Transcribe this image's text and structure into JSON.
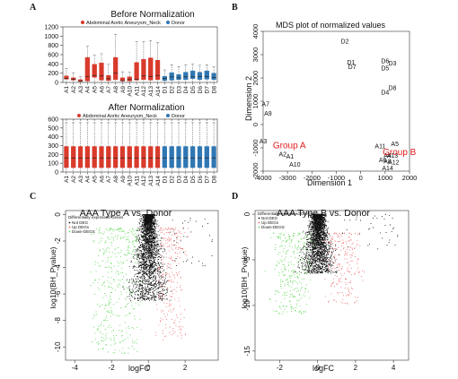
{
  "colors": {
    "red": "#d93a2b",
    "blue": "#2f77b3",
    "black": "#111111",
    "green": "#59d64e",
    "pink": "#f06a6a",
    "axis": "#333333",
    "groupLabel": "#e41a1c"
  },
  "chart_data": [
    {
      "panel": "A",
      "type": "box",
      "title": "Before Normalization",
      "legend": {
        "position": "top-center",
        "items": [
          {
            "name": "Abdominal Aortic Aneurysm_Neck",
            "color": "#d93a2b"
          },
          {
            "name": "Donor",
            "color": "#2f77b3"
          }
        ]
      },
      "ylim": [
        0,
        1200
      ],
      "yticks": [
        0,
        200,
        400,
        600,
        800,
        1000,
        1200
      ],
      "categories": [
        "A1",
        "A2",
        "A3",
        "A4",
        "A5",
        "A6",
        "A7",
        "A8",
        "A9",
        "A10",
        "A11",
        "A12",
        "A13",
        "A14",
        "D1",
        "D2",
        "D3",
        "D4",
        "D5",
        "D6",
        "D7",
        "D8"
      ],
      "groups": [
        "A",
        "A",
        "A",
        "A",
        "A",
        "A",
        "A",
        "A",
        "A",
        "A",
        "A",
        "A",
        "A",
        "A",
        "D",
        "D",
        "D",
        "D",
        "D",
        "D",
        "D",
        "D"
      ],
      "q1": [
        70,
        50,
        20,
        30,
        110,
        50,
        40,
        60,
        30,
        30,
        50,
        60,
        50,
        60,
        40,
        50,
        60,
        60,
        80,
        60,
        70,
        60
      ],
      "median": [
        90,
        70,
        30,
        130,
        150,
        140,
        80,
        200,
        40,
        60,
        70,
        140,
        130,
        150,
        90,
        120,
        100,
        120,
        120,
        130,
        130,
        110
      ],
      "q3": [
        140,
        100,
        60,
        540,
        390,
        420,
        150,
        540,
        100,
        120,
        430,
        500,
        530,
        480,
        130,
        210,
        170,
        220,
        250,
        220,
        250,
        200
      ],
      "whisker_max": [
        300,
        210,
        120,
        780,
        590,
        620,
        390,
        1040,
        230,
        220,
        880,
        880,
        900,
        860,
        270,
        380,
        340,
        380,
        400,
        370,
        380,
        340
      ]
    },
    {
      "panel": "A",
      "type": "box",
      "title": "After Normalization",
      "legend": {
        "position": "top-center",
        "items": [
          {
            "name": "Abdominal Aortic Aneurysm_Neck",
            "color": "#d93a2b"
          },
          {
            "name": "Donor",
            "color": "#2f77b3"
          }
        ]
      },
      "ylim": [
        0,
        600
      ],
      "yticks": [
        0,
        100,
        200,
        300,
        400,
        500,
        600
      ],
      "categories": [
        "A1",
        "A2",
        "A3",
        "A4",
        "A5",
        "A6",
        "A7",
        "A8",
        "A9",
        "A10",
        "A11",
        "A12",
        "A13",
        "A14",
        "D1",
        "D2",
        "D3",
        "D4",
        "D5",
        "D6",
        "D7",
        "D8"
      ],
      "groups": [
        "A",
        "A",
        "A",
        "A",
        "A",
        "A",
        "A",
        "A",
        "A",
        "A",
        "A",
        "A",
        "A",
        "A",
        "D",
        "D",
        "D",
        "D",
        "D",
        "D",
        "D",
        "D"
      ],
      "q1": 50,
      "median": 160,
      "q3": 290,
      "whisker_max": 560,
      "outlier": 590
    },
    {
      "panel": "B",
      "type": "scatter",
      "title": "MDS plot of normalized values",
      "xlabel": "Dimension 1",
      "ylabel": "Dimension 2",
      "xlim": [
        -4000,
        2000
      ],
      "ylim": [
        -2000,
        4000
      ],
      "xticks": [
        -4000,
        -3000,
        -2000,
        -1000,
        0,
        1000,
        2000
      ],
      "yticks": [
        -2000,
        -1000,
        0,
        1000,
        2000,
        3000,
        4000
      ],
      "points": [
        {
          "label": "D2",
          "x": -650,
          "y": 3600
        },
        {
          "label": "D1",
          "x": -400,
          "y": 2700
        },
        {
          "label": "D7",
          "x": -350,
          "y": 2500
        },
        {
          "label": "D6",
          "x": 1000,
          "y": 2750
        },
        {
          "label": "D3",
          "x": 1300,
          "y": 2650
        },
        {
          "label": "D5",
          "x": 1000,
          "y": 2450
        },
        {
          "label": "D4",
          "x": 1000,
          "y": 1400
        },
        {
          "label": "D8",
          "x": 1300,
          "y": 1600
        },
        {
          "label": "A7",
          "x": -3900,
          "y": 900
        },
        {
          "label": "A9",
          "x": -3800,
          "y": 500
        },
        {
          "label": "A3",
          "x": -4000,
          "y": -700
        },
        {
          "label": "A2",
          "x": -3200,
          "y": -1250
        },
        {
          "label": "A1",
          "x": -2900,
          "y": -1350
        },
        {
          "label": "A10",
          "x": -2700,
          "y": -1700
        },
        {
          "label": "A5",
          "x": 1400,
          "y": -800
        },
        {
          "label": "A11",
          "x": 800,
          "y": -900
        },
        {
          "label": "A4",
          "x": 1100,
          "y": -1300
        },
        {
          "label": "A13",
          "x": 1300,
          "y": -1300
        },
        {
          "label": "A6",
          "x": 900,
          "y": -1500
        },
        {
          "label": "A8",
          "x": 1100,
          "y": -1550
        },
        {
          "label": "A12",
          "x": 1350,
          "y": -1600
        },
        {
          "label": "A14",
          "x": 1100,
          "y": -1850
        }
      ],
      "group_labels": [
        {
          "text": "Group A",
          "x": -3600,
          "y": -900
        },
        {
          "text": "Group B",
          "x": 900,
          "y": -1200
        }
      ]
    },
    {
      "panel": "C",
      "type": "scatter",
      "title": "AAA Type A vs. Donor",
      "xlabel": "logFC",
      "ylabel": "log10(BH_Pvalue)",
      "xlim": [
        -4.5,
        3.8
      ],
      "ylim": [
        -11,
        0.3
      ],
      "xticks": [
        -4,
        -2,
        0,
        2
      ],
      "yticks": [
        0,
        -2,
        -4,
        -6,
        -8,
        -10
      ],
      "legend": {
        "title": "Differentially expressed Genes",
        "position": "top-left",
        "items": [
          {
            "name": "Not DEG",
            "color": "#111111"
          },
          {
            "name": "Up DEGs",
            "color": "#f06a6a"
          },
          {
            "name": "Down-DEGS",
            "color": "#59d64e"
          }
        ]
      }
    },
    {
      "panel": "D",
      "type": "scatter",
      "title": "AAA Type B vs. Donor",
      "xlabel": "logFC",
      "ylabel": "log10(BH_Pvalue)",
      "xlim": [
        -3.3,
        4.8
      ],
      "ylim": [
        -16,
        0.4
      ],
      "xticks": [
        -2,
        0,
        2,
        4
      ],
      "yticks": [
        0,
        -5,
        -10,
        -15
      ],
      "legend": {
        "title": "Differentially expressed Genes",
        "position": "top-left",
        "items": [
          {
            "name": "Not DEG",
            "color": "#111111"
          },
          {
            "name": "Up DEGs",
            "color": "#f06a6a"
          },
          {
            "name": "Down-DEGS",
            "color": "#59d64e"
          }
        ]
      }
    }
  ],
  "panel_letters": [
    "A",
    "B",
    "C",
    "D"
  ]
}
